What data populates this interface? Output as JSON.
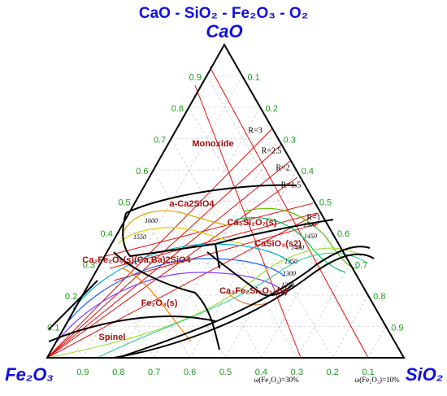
{
  "title": "CaO - SiO₂ - Fe₂O₃ - O₂",
  "corners": {
    "top": "CaO",
    "left": "Fe₂O₃",
    "right": "SiO₂"
  },
  "ticks": {
    "left": [
      0.9,
      0.8,
      0.7,
      0.6,
      0.5,
      0.4,
      0.3,
      0.2,
      0.1
    ],
    "right": [
      0.1,
      0.2,
      0.3,
      0.4,
      0.5,
      0.6,
      0.7,
      0.8,
      0.9
    ],
    "bottom": [
      0.9,
      0.8,
      0.7,
      0.6,
      0.5,
      0.4,
      0.3,
      0.2,
      0.1
    ]
  },
  "phases": [
    "Monoxide",
    "a-Ca2SiO4",
    "Ca₃Si₂O₇(s)",
    "CaSiO₃(s2)",
    "Ca₂Fe₂O₅(s)(Ca,Ba)2SiO4",
    "Fe₂O₃(s)",
    "Spinel",
    "Ca₃Fe₂Si₃O₁₂(s)"
  ],
  "ratios": [
    "R=3",
    "R=2.5",
    "R=2",
    "R=1.5",
    "R=1"
  ],
  "isotherms": [
    1600,
    1550,
    1500,
    1450,
    1400,
    1350,
    1300,
    1250
  ],
  "annotations": [
    "ω(Fe₂O₃)=30%",
    "ω(Fe₂O₃)=10%"
  ]
}
